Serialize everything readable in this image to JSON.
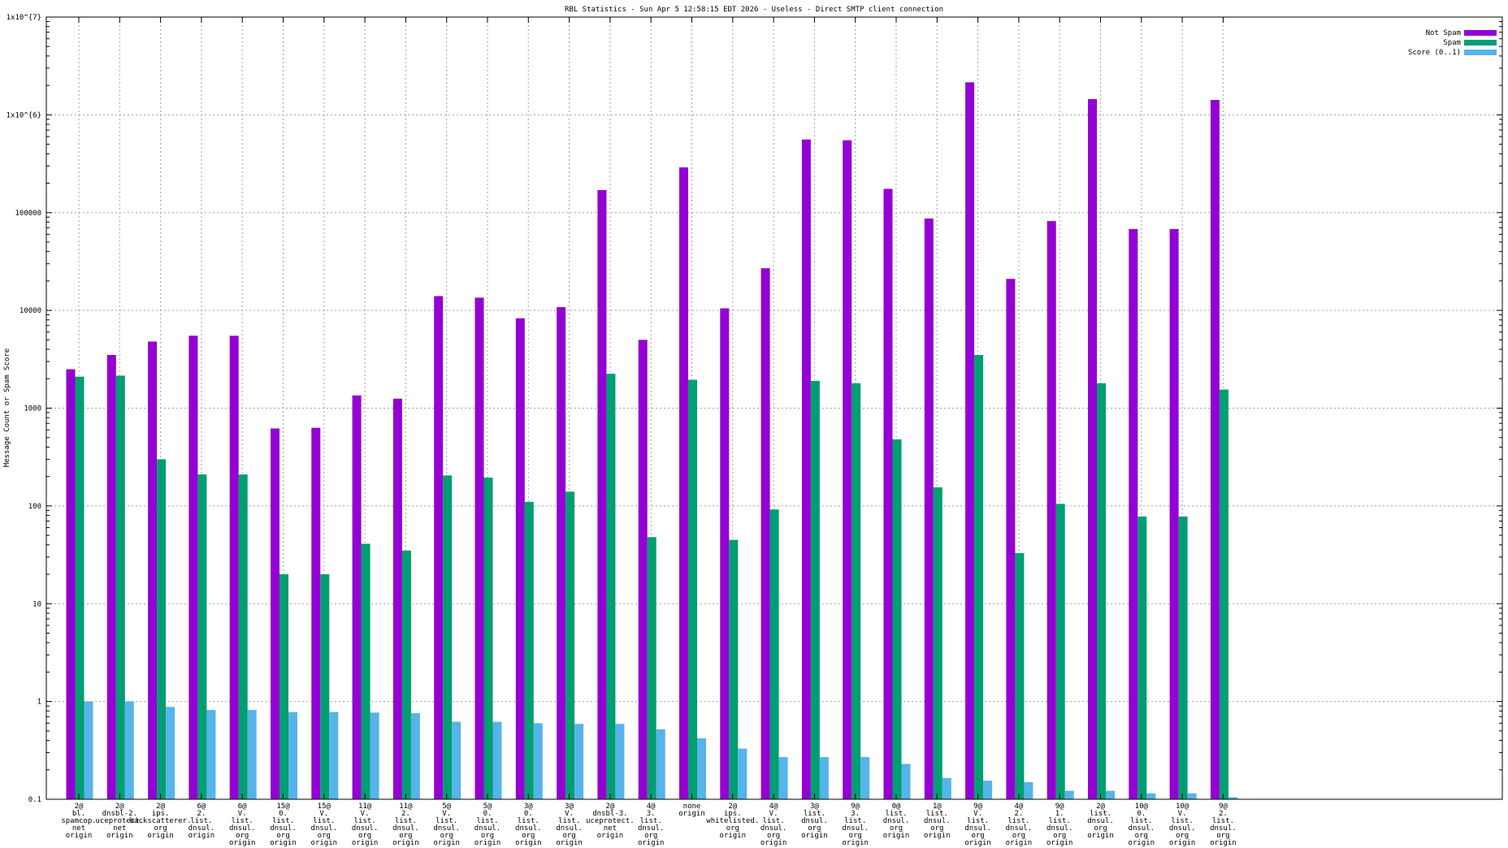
{
  "chart_data": {
    "type": "bar",
    "title": "RBL Statistics - Sun Apr  5 12:58:15 EDT 2026 - Useless - Direct SMTP client connection",
    "xlabel": "",
    "ylabel": "Message Count or Spam Score",
    "yscale": "log",
    "ylim": [
      0.1,
      10000000
    ],
    "yticks": [
      {
        "value": 0.1,
        "label": "0.1"
      },
      {
        "value": 1,
        "label": "1"
      },
      {
        "value": 10,
        "label": "10"
      },
      {
        "value": 100,
        "label": "100"
      },
      {
        "value": 1000,
        "label": "1000"
      },
      {
        "value": 10000,
        "label": "10000"
      },
      {
        "value": 100000,
        "label": "100000"
      },
      {
        "value": 1000000,
        "label": "1x10^{6}"
      },
      {
        "value": 10000000,
        "label": "1x10^{7}"
      }
    ],
    "grid": true,
    "legend_position": "top-right",
    "categories": [
      [
        "2@",
        "bl.",
        "spamcop.",
        "net",
        "origin"
      ],
      [
        "2@",
        "dnsbl-2.",
        "uceprotect.",
        "net",
        "origin"
      ],
      [
        "2@",
        "ips.",
        "backscatterer.",
        "org",
        "origin"
      ],
      [
        "6@",
        "2.",
        "list.",
        "dnsul.",
        "origin"
      ],
      [
        "6@",
        "V.",
        "list.",
        "dnsul.",
        "org",
        "origin"
      ],
      [
        "15@",
        "0.",
        "list.",
        "dnsul.",
        "org",
        "origin"
      ],
      [
        "15@",
        "V.",
        "list.",
        "dnsul.",
        "org",
        "origin"
      ],
      [
        "11@",
        "V.",
        "list.",
        "dnsul.",
        "org",
        "origin"
      ],
      [
        "11@",
        "2.",
        "list.",
        "dnsul.",
        "org",
        "origin"
      ],
      [
        "5@",
        "V.",
        "list.",
        "dnsul.",
        "org",
        "origin"
      ],
      [
        "5@",
        "0.",
        "list.",
        "dnsul.",
        "org",
        "origin"
      ],
      [
        "3@",
        "0.",
        "list.",
        "dnsul.",
        "org",
        "origin"
      ],
      [
        "3@",
        "V.",
        "list.",
        "dnsul.",
        "org",
        "origin"
      ],
      [
        "2@",
        "dnsbl-3.",
        "uceprotect.",
        "net",
        "origin"
      ],
      [
        "4@",
        "3.",
        "list.",
        "dnsul.",
        "org",
        "origin"
      ],
      [
        "none",
        "origin"
      ],
      [
        "2@",
        "ips.",
        "whitelisted.",
        "org",
        "origin"
      ],
      [
        "4@",
        "V.",
        "list.",
        "dnsul.",
        "org",
        "origin"
      ],
      [
        "3@",
        "list.",
        "dnsul.",
        "org",
        "origin"
      ],
      [
        "9@",
        "3.",
        "list.",
        "dnsul.",
        "org",
        "origin"
      ],
      [
        "0@",
        "list.",
        "dnsul.",
        "org",
        "origin"
      ],
      [
        "1@",
        "list.",
        "dnsul.",
        "org",
        "origin"
      ],
      [
        "9@",
        "V.",
        "list.",
        "dnsul.",
        "org",
        "origin"
      ],
      [
        "4@",
        "2.",
        "list.",
        "dnsul.",
        "org",
        "origin"
      ],
      [
        "9@",
        "1.",
        "list.",
        "dnsul.",
        "org",
        "origin"
      ],
      [
        "2@",
        "list.",
        "dnsul.",
        "org",
        "origin"
      ],
      [
        "10@",
        "0.",
        "list.",
        "dnsul.",
        "org",
        "origin"
      ],
      [
        "10@",
        "V.",
        "list.",
        "dnsul.",
        "org",
        "origin"
      ],
      [
        "9@",
        "2.",
        "list.",
        "dnsul.",
        "org",
        "origin"
      ]
    ],
    "series": [
      {
        "name": "Not Spam",
        "color": "#9400d3",
        "values": [
          2500,
          3500,
          4800,
          5500,
          5500,
          620,
          630,
          1350,
          1250,
          14000,
          13500,
          8300,
          10800,
          170000,
          5000,
          290000,
          10500,
          27000,
          560000,
          550000,
          175000,
          87000,
          2150000,
          21000,
          82000,
          1450000,
          68000,
          68000,
          1420000
        ]
      },
      {
        "name": "Spam",
        "color": "#009e73",
        "values": [
          2100,
          2150,
          300,
          210,
          210,
          20,
          20,
          41,
          35,
          205,
          195,
          110,
          140,
          2250,
          48,
          1950,
          45,
          92,
          1900,
          1800,
          480,
          155,
          3500,
          33,
          105,
          1800,
          78,
          78,
          1550
        ]
      },
      {
        "name": "Score (0..1)",
        "color": "#56b4e9",
        "values": [
          1.0,
          1.0,
          0.88,
          0.82,
          0.82,
          0.78,
          0.78,
          0.77,
          0.76,
          0.62,
          0.62,
          0.6,
          0.59,
          0.59,
          0.52,
          0.42,
          0.33,
          0.27,
          0.27,
          0.27,
          0.23,
          0.165,
          0.155,
          0.15,
          0.122,
          0.122,
          0.115,
          0.115,
          0.105
        ]
      }
    ]
  }
}
